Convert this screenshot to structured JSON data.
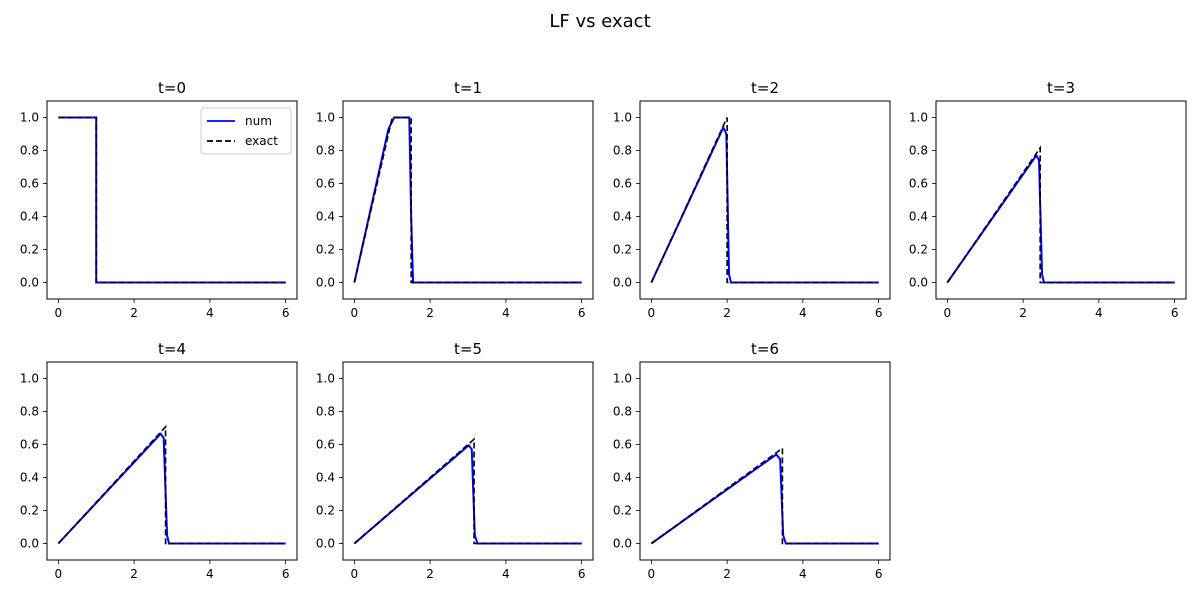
{
  "figure_title": "LF vs exact",
  "colors": {
    "num": "#0000ff",
    "exact": "#000000"
  },
  "chart_data": [
    {
      "type": "line",
      "title": "t=0",
      "xlim": [
        -0.3,
        6.3
      ],
      "ylim": [
        -0.1,
        1.1
      ],
      "xticks": [
        0,
        2,
        4,
        6
      ],
      "yticks": [
        0.0,
        0.2,
        0.4,
        0.6,
        0.8,
        1.0
      ],
      "xtick_labels": [
        "0",
        "2",
        "4",
        "6"
      ],
      "ytick_labels": [
        "0.0",
        "0.2",
        "0.4",
        "0.6",
        "0.8",
        "1.0"
      ],
      "legend": {
        "placement": "upper-right",
        "entries": [
          "num",
          "exact"
        ]
      },
      "series": [
        {
          "name": "num",
          "style": "solid",
          "x": [
            0,
            1.0,
            1.0,
            6
          ],
          "y": [
            1,
            1,
            0,
            0
          ]
        },
        {
          "name": "exact",
          "style": "dashed",
          "x": [
            0,
            1.0,
            1.0,
            6
          ],
          "y": [
            1,
            1,
            0,
            0
          ]
        }
      ]
    },
    {
      "type": "line",
      "title": "t=1",
      "xlim": [
        -0.3,
        6.3
      ],
      "ylim": [
        -0.1,
        1.1
      ],
      "xticks": [
        0,
        2,
        4,
        6
      ],
      "yticks": [
        0.0,
        0.2,
        0.4,
        0.6,
        0.8,
        1.0
      ],
      "xtick_labels": [
        "0",
        "2",
        "4",
        "6"
      ],
      "ytick_labels": [
        "0.0",
        "0.2",
        "0.4",
        "0.6",
        "0.8",
        "1.0"
      ],
      "series": [
        {
          "name": "num",
          "style": "solid",
          "x": [
            0,
            0.9,
            1.05,
            1.45,
            1.5,
            1.55,
            6
          ],
          "y": [
            0,
            0.93,
            1.0,
            1.0,
            0.4,
            0,
            0
          ]
        },
        {
          "name": "exact",
          "style": "dashed",
          "x": [
            0,
            1.0,
            1.5,
            1.5,
            6
          ],
          "y": [
            0,
            1,
            1,
            0,
            0
          ]
        }
      ]
    },
    {
      "type": "line",
      "title": "t=2",
      "xlim": [
        -0.3,
        6.3
      ],
      "ylim": [
        -0.1,
        1.1
      ],
      "xticks": [
        0,
        2,
        4,
        6
      ],
      "yticks": [
        0.0,
        0.2,
        0.4,
        0.6,
        0.8,
        1.0
      ],
      "xtick_labels": [
        "0",
        "2",
        "4",
        "6"
      ],
      "ytick_labels": [
        "0.0",
        "0.2",
        "0.4",
        "0.6",
        "0.8",
        "1.0"
      ],
      "series": [
        {
          "name": "num",
          "style": "solid",
          "x": [
            0,
            1.9,
            1.98,
            2.05,
            2.1,
            6
          ],
          "y": [
            0,
            0.94,
            0.9,
            0.05,
            0,
            0
          ]
        },
        {
          "name": "exact",
          "style": "dashed",
          "x": [
            0,
            2.0,
            2.0,
            6
          ],
          "y": [
            0,
            1,
            0,
            0
          ]
        }
      ]
    },
    {
      "type": "line",
      "title": "t=3",
      "xlim": [
        -0.3,
        6.3
      ],
      "ylim": [
        -0.1,
        1.1
      ],
      "xticks": [
        0,
        2,
        4,
        6
      ],
      "yticks": [
        0.0,
        0.2,
        0.4,
        0.6,
        0.8,
        1.0
      ],
      "xtick_labels": [
        "0",
        "2",
        "4",
        "6"
      ],
      "ytick_labels": [
        "0.0",
        "0.2",
        "0.4",
        "0.6",
        "0.8",
        "1.0"
      ],
      "series": [
        {
          "name": "num",
          "style": "solid",
          "x": [
            0,
            2.35,
            2.42,
            2.5,
            2.55,
            6
          ],
          "y": [
            0,
            0.77,
            0.74,
            0.05,
            0,
            0
          ]
        },
        {
          "name": "exact",
          "style": "dashed",
          "x": [
            0,
            2.45,
            2.45,
            6
          ],
          "y": [
            0,
            0.816,
            0,
            0
          ]
        }
      ]
    },
    {
      "type": "line",
      "title": "t=4",
      "xlim": [
        -0.3,
        6.3
      ],
      "ylim": [
        -0.1,
        1.1
      ],
      "xticks": [
        0,
        2,
        4,
        6
      ],
      "yticks": [
        0.0,
        0.2,
        0.4,
        0.6,
        0.8,
        1.0
      ],
      "xtick_labels": [
        "0",
        "2",
        "4",
        "6"
      ],
      "ytick_labels": [
        "0.0",
        "0.2",
        "0.4",
        "0.6",
        "0.8",
        "1.0"
      ],
      "series": [
        {
          "name": "num",
          "style": "solid",
          "x": [
            0,
            2.7,
            2.78,
            2.87,
            2.92,
            6
          ],
          "y": [
            0,
            0.665,
            0.64,
            0.05,
            0,
            0
          ]
        },
        {
          "name": "exact",
          "style": "dashed",
          "x": [
            0,
            2.83,
            2.83,
            6
          ],
          "y": [
            0,
            0.707,
            0,
            0
          ]
        }
      ]
    },
    {
      "type": "line",
      "title": "t=5",
      "xlim": [
        -0.3,
        6.3
      ],
      "ylim": [
        -0.1,
        1.1
      ],
      "xticks": [
        0,
        2,
        4,
        6
      ],
      "yticks": [
        0.0,
        0.2,
        0.4,
        0.6,
        0.8,
        1.0
      ],
      "xtick_labels": [
        "0",
        "2",
        "4",
        "6"
      ],
      "ytick_labels": [
        "0.0",
        "0.2",
        "0.4",
        "0.6",
        "0.8",
        "1.0"
      ],
      "series": [
        {
          "name": "num",
          "style": "solid",
          "x": [
            0,
            3.02,
            3.1,
            3.18,
            3.25,
            6
          ],
          "y": [
            0,
            0.595,
            0.57,
            0.05,
            0,
            0
          ]
        },
        {
          "name": "exact",
          "style": "dashed",
          "x": [
            0,
            3.16,
            3.16,
            6
          ],
          "y": [
            0,
            0.632,
            0,
            0
          ]
        }
      ]
    },
    {
      "type": "line",
      "title": "t=6",
      "xlim": [
        -0.3,
        6.3
      ],
      "ylim": [
        -0.1,
        1.1
      ],
      "xticks": [
        0,
        2,
        4,
        6
      ],
      "yticks": [
        0.0,
        0.2,
        0.4,
        0.6,
        0.8,
        1.0
      ],
      "xtick_labels": [
        "0",
        "2",
        "4",
        "6"
      ],
      "ytick_labels": [
        "0.0",
        "0.2",
        "0.4",
        "0.6",
        "0.8",
        "1.0"
      ],
      "series": [
        {
          "name": "num",
          "style": "solid",
          "x": [
            0,
            3.3,
            3.4,
            3.48,
            3.55,
            6
          ],
          "y": [
            0,
            0.54,
            0.51,
            0.05,
            0,
            0
          ]
        },
        {
          "name": "exact",
          "style": "dashed",
          "x": [
            0,
            3.46,
            3.46,
            6
          ],
          "y": [
            0,
            0.577,
            0,
            0
          ]
        }
      ]
    }
  ]
}
